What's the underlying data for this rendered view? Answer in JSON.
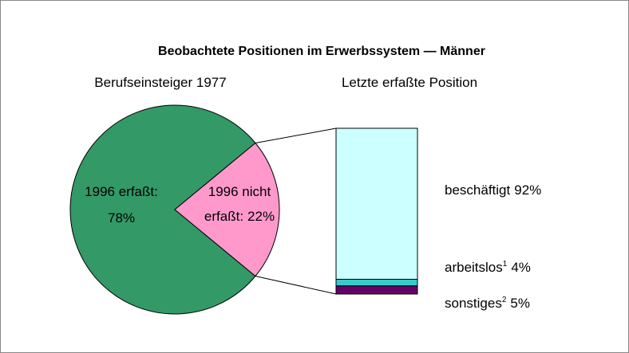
{
  "chart_data": [
    {
      "type": "pie",
      "title": "Beobachtete Positionen im Erwerbssystem — Männer",
      "subtitle": "Berufseinsteiger 1977",
      "categories": [
        "1996 erfaßt:",
        "1996 nicht erfaßt:"
      ],
      "values": [
        78,
        22
      ],
      "value_labels": [
        "78%",
        "22%"
      ],
      "colors": [
        "#339966",
        "#ff99cc"
      ]
    },
    {
      "type": "stacked-bar",
      "subtitle": "Letzte erfaßte Position",
      "categories": [
        "beschäftigt",
        "arbeitslos",
        "sonstiges"
      ],
      "footnotes": [
        null,
        "1",
        "2"
      ],
      "values": [
        92,
        4,
        5
      ],
      "value_labels": [
        "92%",
        "4%",
        "5%"
      ],
      "colors": [
        "#ccffff",
        "#33cccc",
        "#660066"
      ]
    }
  ]
}
